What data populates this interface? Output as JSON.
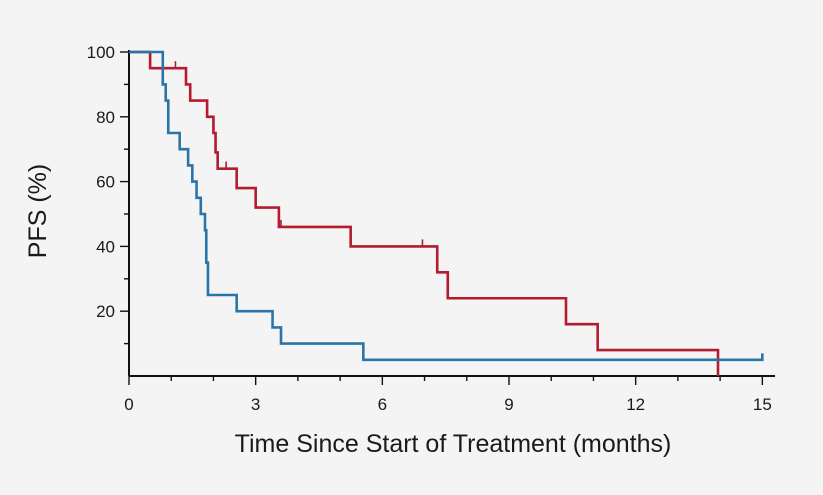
{
  "chart_data": {
    "type": "line",
    "step": true,
    "xlabel": "Time Since Start of Treatment (months)",
    "ylabel": "PFS (%)",
    "xlim": [
      0,
      15.3
    ],
    "ylim": [
      0,
      100
    ],
    "x_ticks": [
      0,
      3,
      6,
      9,
      12,
      15
    ],
    "y_ticks": [
      20,
      40,
      60,
      80,
      100
    ],
    "grid": false,
    "legend": "none",
    "series": [
      {
        "color": "#b31b2e",
        "points": [
          [
            0,
            100
          ],
          [
            0.5,
            100
          ],
          [
            0.5,
            95
          ],
          [
            1.35,
            95
          ],
          [
            1.35,
            90
          ],
          [
            1.45,
            90
          ],
          [
            1.45,
            85
          ],
          [
            1.85,
            85
          ],
          [
            1.85,
            80
          ],
          [
            2.0,
            80
          ],
          [
            2.0,
            75
          ],
          [
            2.05,
            75
          ],
          [
            2.05,
            69
          ],
          [
            2.1,
            69
          ],
          [
            2.1,
            64
          ],
          [
            2.55,
            64
          ],
          [
            2.55,
            58
          ],
          [
            3.0,
            58
          ],
          [
            3.0,
            52
          ],
          [
            3.55,
            52
          ],
          [
            3.55,
            46
          ],
          [
            5.25,
            46
          ],
          [
            5.25,
            40
          ],
          [
            7.3,
            40
          ],
          [
            7.3,
            32
          ],
          [
            7.55,
            32
          ],
          [
            7.55,
            24
          ],
          [
            10.35,
            24
          ],
          [
            10.35,
            16
          ],
          [
            11.1,
            16
          ],
          [
            11.1,
            8
          ],
          [
            13.95,
            8
          ],
          [
            13.95,
            0
          ]
        ],
        "censor_x": [
          1.1,
          2.3,
          3.6,
          6.95
        ]
      },
      {
        "color": "#2a74a8",
        "points": [
          [
            0,
            100
          ],
          [
            0.8,
            100
          ],
          [
            0.8,
            90
          ],
          [
            0.87,
            90
          ],
          [
            0.87,
            85
          ],
          [
            0.93,
            85
          ],
          [
            0.93,
            75
          ],
          [
            1.2,
            75
          ],
          [
            1.2,
            70
          ],
          [
            1.4,
            70
          ],
          [
            1.4,
            65
          ],
          [
            1.5,
            65
          ],
          [
            1.5,
            60
          ],
          [
            1.6,
            60
          ],
          [
            1.6,
            55
          ],
          [
            1.7,
            55
          ],
          [
            1.7,
            50
          ],
          [
            1.8,
            50
          ],
          [
            1.8,
            45
          ],
          [
            1.83,
            45
          ],
          [
            1.83,
            35
          ],
          [
            1.87,
            35
          ],
          [
            1.87,
            25
          ],
          [
            2.55,
            25
          ],
          [
            2.55,
            20
          ],
          [
            3.4,
            20
          ],
          [
            3.4,
            15
          ],
          [
            3.6,
            15
          ],
          [
            3.6,
            10
          ],
          [
            5.55,
            10
          ],
          [
            5.55,
            5
          ],
          [
            15,
            5
          ],
          [
            15,
            7
          ]
        ],
        "censor_x": []
      }
    ]
  }
}
